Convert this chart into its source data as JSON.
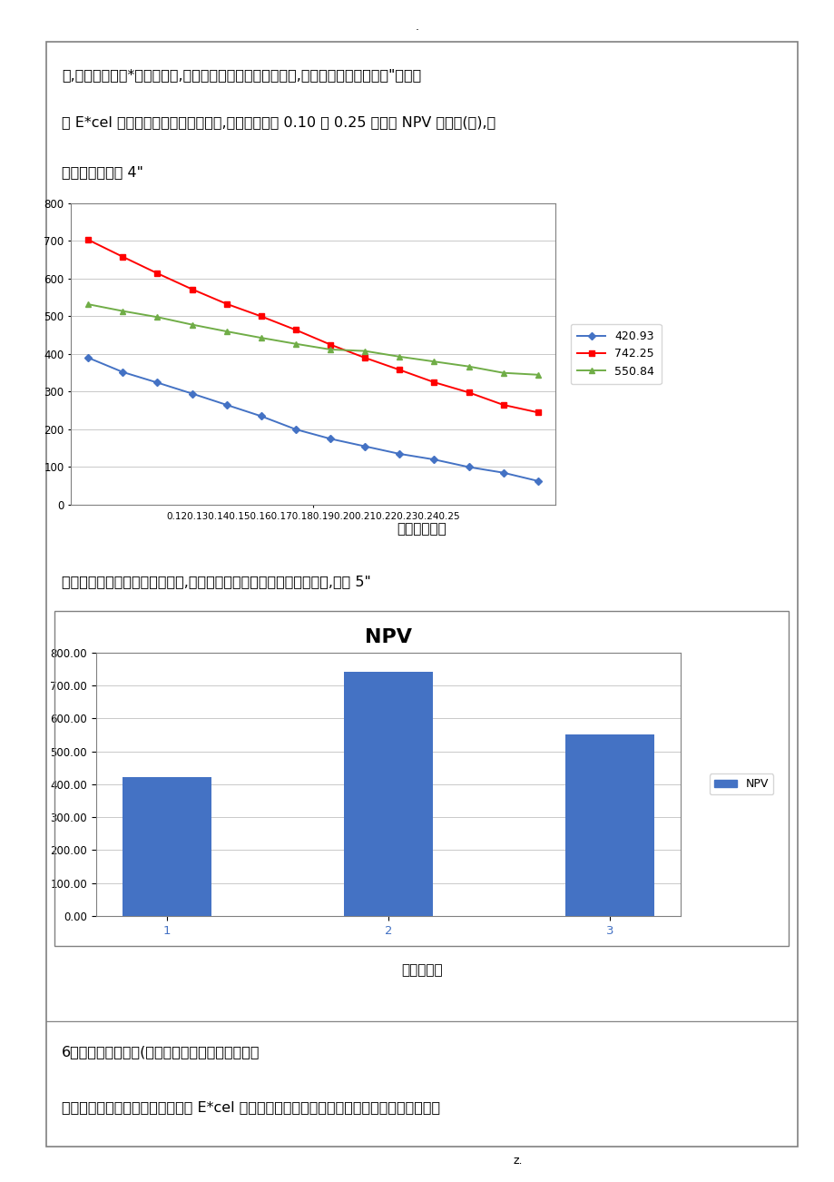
{
  "page_bg": "#ffffff",
  "border_color": "#808080",
  "top_text_lines": [
    "析,观察贴现率在*一围变化时,投资方案的结果是否受到影响,是否具有较好的稳定性\"可以借",
    "助 E*cel 提供的单变量模拟运算功能,得到贴现率在 0.10 到 0.25 之间的 NPV 数据表(略),对",
    "应的折线图如图 4\""
  ],
  "line_chart": {
    "x_values": [
      0.12,
      0.13,
      0.14,
      0.15,
      0.16,
      0.17,
      0.18,
      0.19,
      0.2,
      0.21,
      0.22,
      0.23,
      0.24,
      0.25
    ],
    "x_tick_label": "0.120.130.140.150.160.170.180.190.200.210.220.230.240.25",
    "series": [
      {
        "label": "420.93",
        "color": "#4472C4",
        "marker": "D",
        "values": [
          390,
          352,
          324,
          295,
          265,
          235,
          200,
          175,
          155,
          135,
          120,
          100,
          85,
          63
        ]
      },
      {
        "label": "742.25",
        "color": "#FF0000",
        "marker": "s",
        "values": [
          703,
          658,
          614,
          572,
          533,
          500,
          464,
          425,
          390,
          358,
          325,
          298,
          265,
          245
        ]
      },
      {
        "label": "550.84",
        "color": "#70AD47",
        "marker": "^",
        "values": [
          532,
          514,
          498,
          478,
          460,
          443,
          427,
          412,
          408,
          393,
          380,
          367,
          350,
          345
        ]
      }
    ],
    "ylim": [
      0,
      800
    ],
    "yticks": [
      0,
      100,
      200,
      300,
      400,
      500,
      600,
      700,
      800
    ],
    "caption": "灵敏度分析图",
    "bg_color": "#ffffff",
    "grid_color": "#C0C0C0"
  },
  "mid_text": "为了使决策过程更加直观、可视,可以制作该投资决策分析的可调图形,如图 5\"",
  "bar_chart": {
    "categories": [
      "1",
      "2",
      "3"
    ],
    "values": [
      420.93,
      742.25,
      550.84
    ],
    "bar_color": "#4472C4",
    "legend_label": "NPV",
    "title": "NPV",
    "ylim": [
      0,
      800
    ],
    "yticks": [
      0.0,
      100.0,
      200.0,
      300.0,
      400.0,
      500.0,
      600.0,
      700.0,
      800.0
    ],
    "caption": "工程决策图",
    "bg_color": "#ffffff",
    "grid_color": "#C0C0C0"
  },
  "bottom_text_lines": [
    "6．实验结论及心得(指本年度实验的结论与心得）",
    "　　通过本次实验，使我能够使用 E*cel 实现工程管理决策的方法，也可以进展数据分析，从"
  ],
  "dot_top": ".",
  "dot_bottom": "z."
}
